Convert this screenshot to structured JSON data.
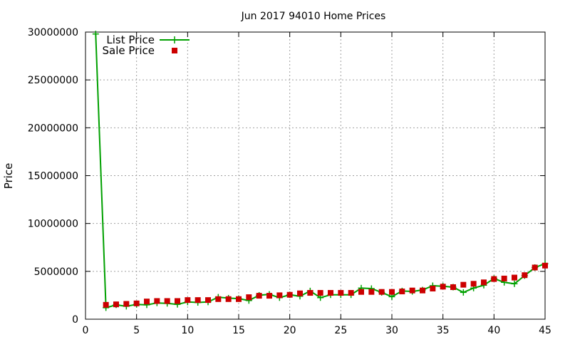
{
  "chart_data": {
    "type": "line",
    "title": "Jun 2017 94010 Home Prices",
    "xlabel": "",
    "ylabel": "Price",
    "xlim": [
      0,
      45
    ],
    "ylim": [
      0,
      30000000
    ],
    "xticks": [
      0,
      5,
      10,
      15,
      20,
      25,
      30,
      35,
      40,
      45
    ],
    "yticks": [
      0,
      5000000,
      10000000,
      15000000,
      20000000,
      25000000,
      30000000
    ],
    "xtick_labels": [
      "0",
      "5",
      "10",
      "15",
      "20",
      "25",
      "30",
      "35",
      "40",
      "45"
    ],
    "ytick_labels": [
      "0",
      "5000000",
      "10000000",
      "15000000",
      "20000000",
      "25000000",
      "30000000"
    ],
    "grid": true,
    "legend_position": "top-left",
    "series": [
      {
        "name": "List Price",
        "style": "line-points",
        "color": "#00a000",
        "marker": "plus",
        "x": [
          1,
          2,
          3,
          4,
          5,
          6,
          7,
          8,
          9,
          10,
          11,
          12,
          13,
          14,
          15,
          16,
          17,
          18,
          19,
          20,
          21,
          22,
          23,
          24,
          25,
          26,
          27,
          28,
          29,
          30,
          31,
          32,
          33,
          34,
          35,
          36,
          37,
          38,
          39,
          40,
          41,
          42,
          43,
          44,
          45
        ],
        "y": [
          29800000,
          1200000,
          1500000,
          1350000,
          1550000,
          1500000,
          1700000,
          1650000,
          1550000,
          1800000,
          1750000,
          1800000,
          2300000,
          2200000,
          2150000,
          1950000,
          2500000,
          2600000,
          2250000,
          2550000,
          2400000,
          2950000,
          2250000,
          2550000,
          2550000,
          2550000,
          3250000,
          3200000,
          2800000,
          2350000,
          2950000,
          2900000,
          3050000,
          3500000,
          3450000,
          3350000,
          2800000,
          3250000,
          3550000,
          4250000,
          3850000,
          3700000,
          4550000,
          5400000,
          5800000
        ]
      },
      {
        "name": "Sale Price",
        "style": "points",
        "color": "#cc0000",
        "marker": "square",
        "x": [
          2,
          3,
          4,
          5,
          6,
          7,
          8,
          9,
          10,
          11,
          12,
          13,
          14,
          15,
          16,
          17,
          18,
          19,
          20,
          21,
          22,
          23,
          24,
          25,
          26,
          27,
          28,
          29,
          30,
          31,
          32,
          33,
          34,
          35,
          36,
          37,
          38,
          39,
          40,
          41,
          42,
          43,
          44,
          45
        ],
        "y": [
          1500000,
          1550000,
          1600000,
          1650000,
          1850000,
          1900000,
          1900000,
          1900000,
          2000000,
          2000000,
          2000000,
          2100000,
          2100000,
          2100000,
          2300000,
          2450000,
          2450000,
          2500000,
          2550000,
          2700000,
          2750000,
          2750000,
          2750000,
          2750000,
          2750000,
          2850000,
          2850000,
          2850000,
          2850000,
          2900000,
          3000000,
          3000000,
          3200000,
          3400000,
          3350000,
          3600000,
          3700000,
          3850000,
          4200000,
          4250000,
          4350000,
          4600000,
          5400000,
          5600000
        ]
      }
    ]
  }
}
